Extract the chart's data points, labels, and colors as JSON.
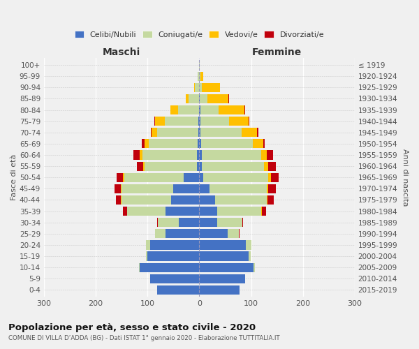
{
  "age_groups": [
    "0-4",
    "5-9",
    "10-14",
    "15-19",
    "20-24",
    "25-29",
    "30-34",
    "35-39",
    "40-44",
    "45-49",
    "50-54",
    "55-59",
    "60-64",
    "65-69",
    "70-74",
    "75-79",
    "80-84",
    "85-89",
    "90-94",
    "95-99",
    "100+"
  ],
  "birth_years": [
    "2015-2019",
    "2010-2014",
    "2005-2009",
    "2000-2004",
    "1995-1999",
    "1990-1994",
    "1985-1989",
    "1980-1984",
    "1975-1979",
    "1970-1974",
    "1965-1969",
    "1960-1964",
    "1955-1959",
    "1950-1954",
    "1945-1949",
    "1940-1944",
    "1935-1939",
    "1930-1934",
    "1925-1929",
    "1920-1924",
    "≤ 1919"
  ],
  "male": {
    "celibi": [
      82,
      95,
      115,
      100,
      95,
      65,
      40,
      65,
      55,
      50,
      30,
      5,
      5,
      3,
      2,
      2,
      1,
      1,
      0,
      0,
      0
    ],
    "coniugati": [
      0,
      0,
      1,
      3,
      8,
      20,
      40,
      75,
      95,
      100,
      115,
      100,
      105,
      95,
      80,
      65,
      40,
      20,
      8,
      3,
      1
    ],
    "vedovi": [
      0,
      0,
      0,
      0,
      0,
      0,
      0,
      0,
      1,
      2,
      2,
      3,
      5,
      8,
      10,
      18,
      15,
      5,
      2,
      0,
      0
    ],
    "divorziati": [
      0,
      0,
      0,
      0,
      0,
      1,
      2,
      8,
      10,
      12,
      12,
      12,
      12,
      5,
      2,
      2,
      0,
      0,
      0,
      0,
      0
    ]
  },
  "female": {
    "nubili": [
      78,
      88,
      105,
      95,
      90,
      55,
      35,
      35,
      30,
      20,
      8,
      5,
      5,
      3,
      2,
      2,
      2,
      1,
      0,
      0,
      0
    ],
    "coniugate": [
      0,
      0,
      2,
      4,
      10,
      22,
      48,
      85,
      100,
      110,
      125,
      120,
      115,
      100,
      80,
      55,
      35,
      15,
      5,
      2,
      1
    ],
    "vedove": [
      0,
      0,
      0,
      0,
      0,
      0,
      0,
      1,
      2,
      3,
      5,
      8,
      10,
      20,
      30,
      38,
      50,
      40,
      35,
      5,
      0
    ],
    "divorziate": [
      0,
      0,
      0,
      0,
      0,
      1,
      2,
      8,
      12,
      15,
      15,
      15,
      12,
      3,
      2,
      2,
      2,
      2,
      0,
      0,
      0
    ]
  },
  "colors": {
    "celibi": "#4472c4",
    "coniugati": "#c5d9a0",
    "vedovi": "#ffc000",
    "divorziati": "#c0000c"
  },
  "title": "Popolazione per età, sesso e stato civile - 2020",
  "subtitle": "COMUNE DI VILLA D’ADDA (BG) - Dati ISTAT 1° gennaio 2020 - Elaborazione TUTTITALIA.IT",
  "xlabel_left": "Maschi",
  "xlabel_right": "Femmine",
  "ylabel_left": "Fasce di età",
  "ylabel_right": "Anni di nascita",
  "xlim": 300,
  "legend_labels": [
    "Celibi/Nubili",
    "Coniugati/e",
    "Vedovi/e",
    "Divorziati/e"
  ],
  "bg_color": "#f0f0f0"
}
